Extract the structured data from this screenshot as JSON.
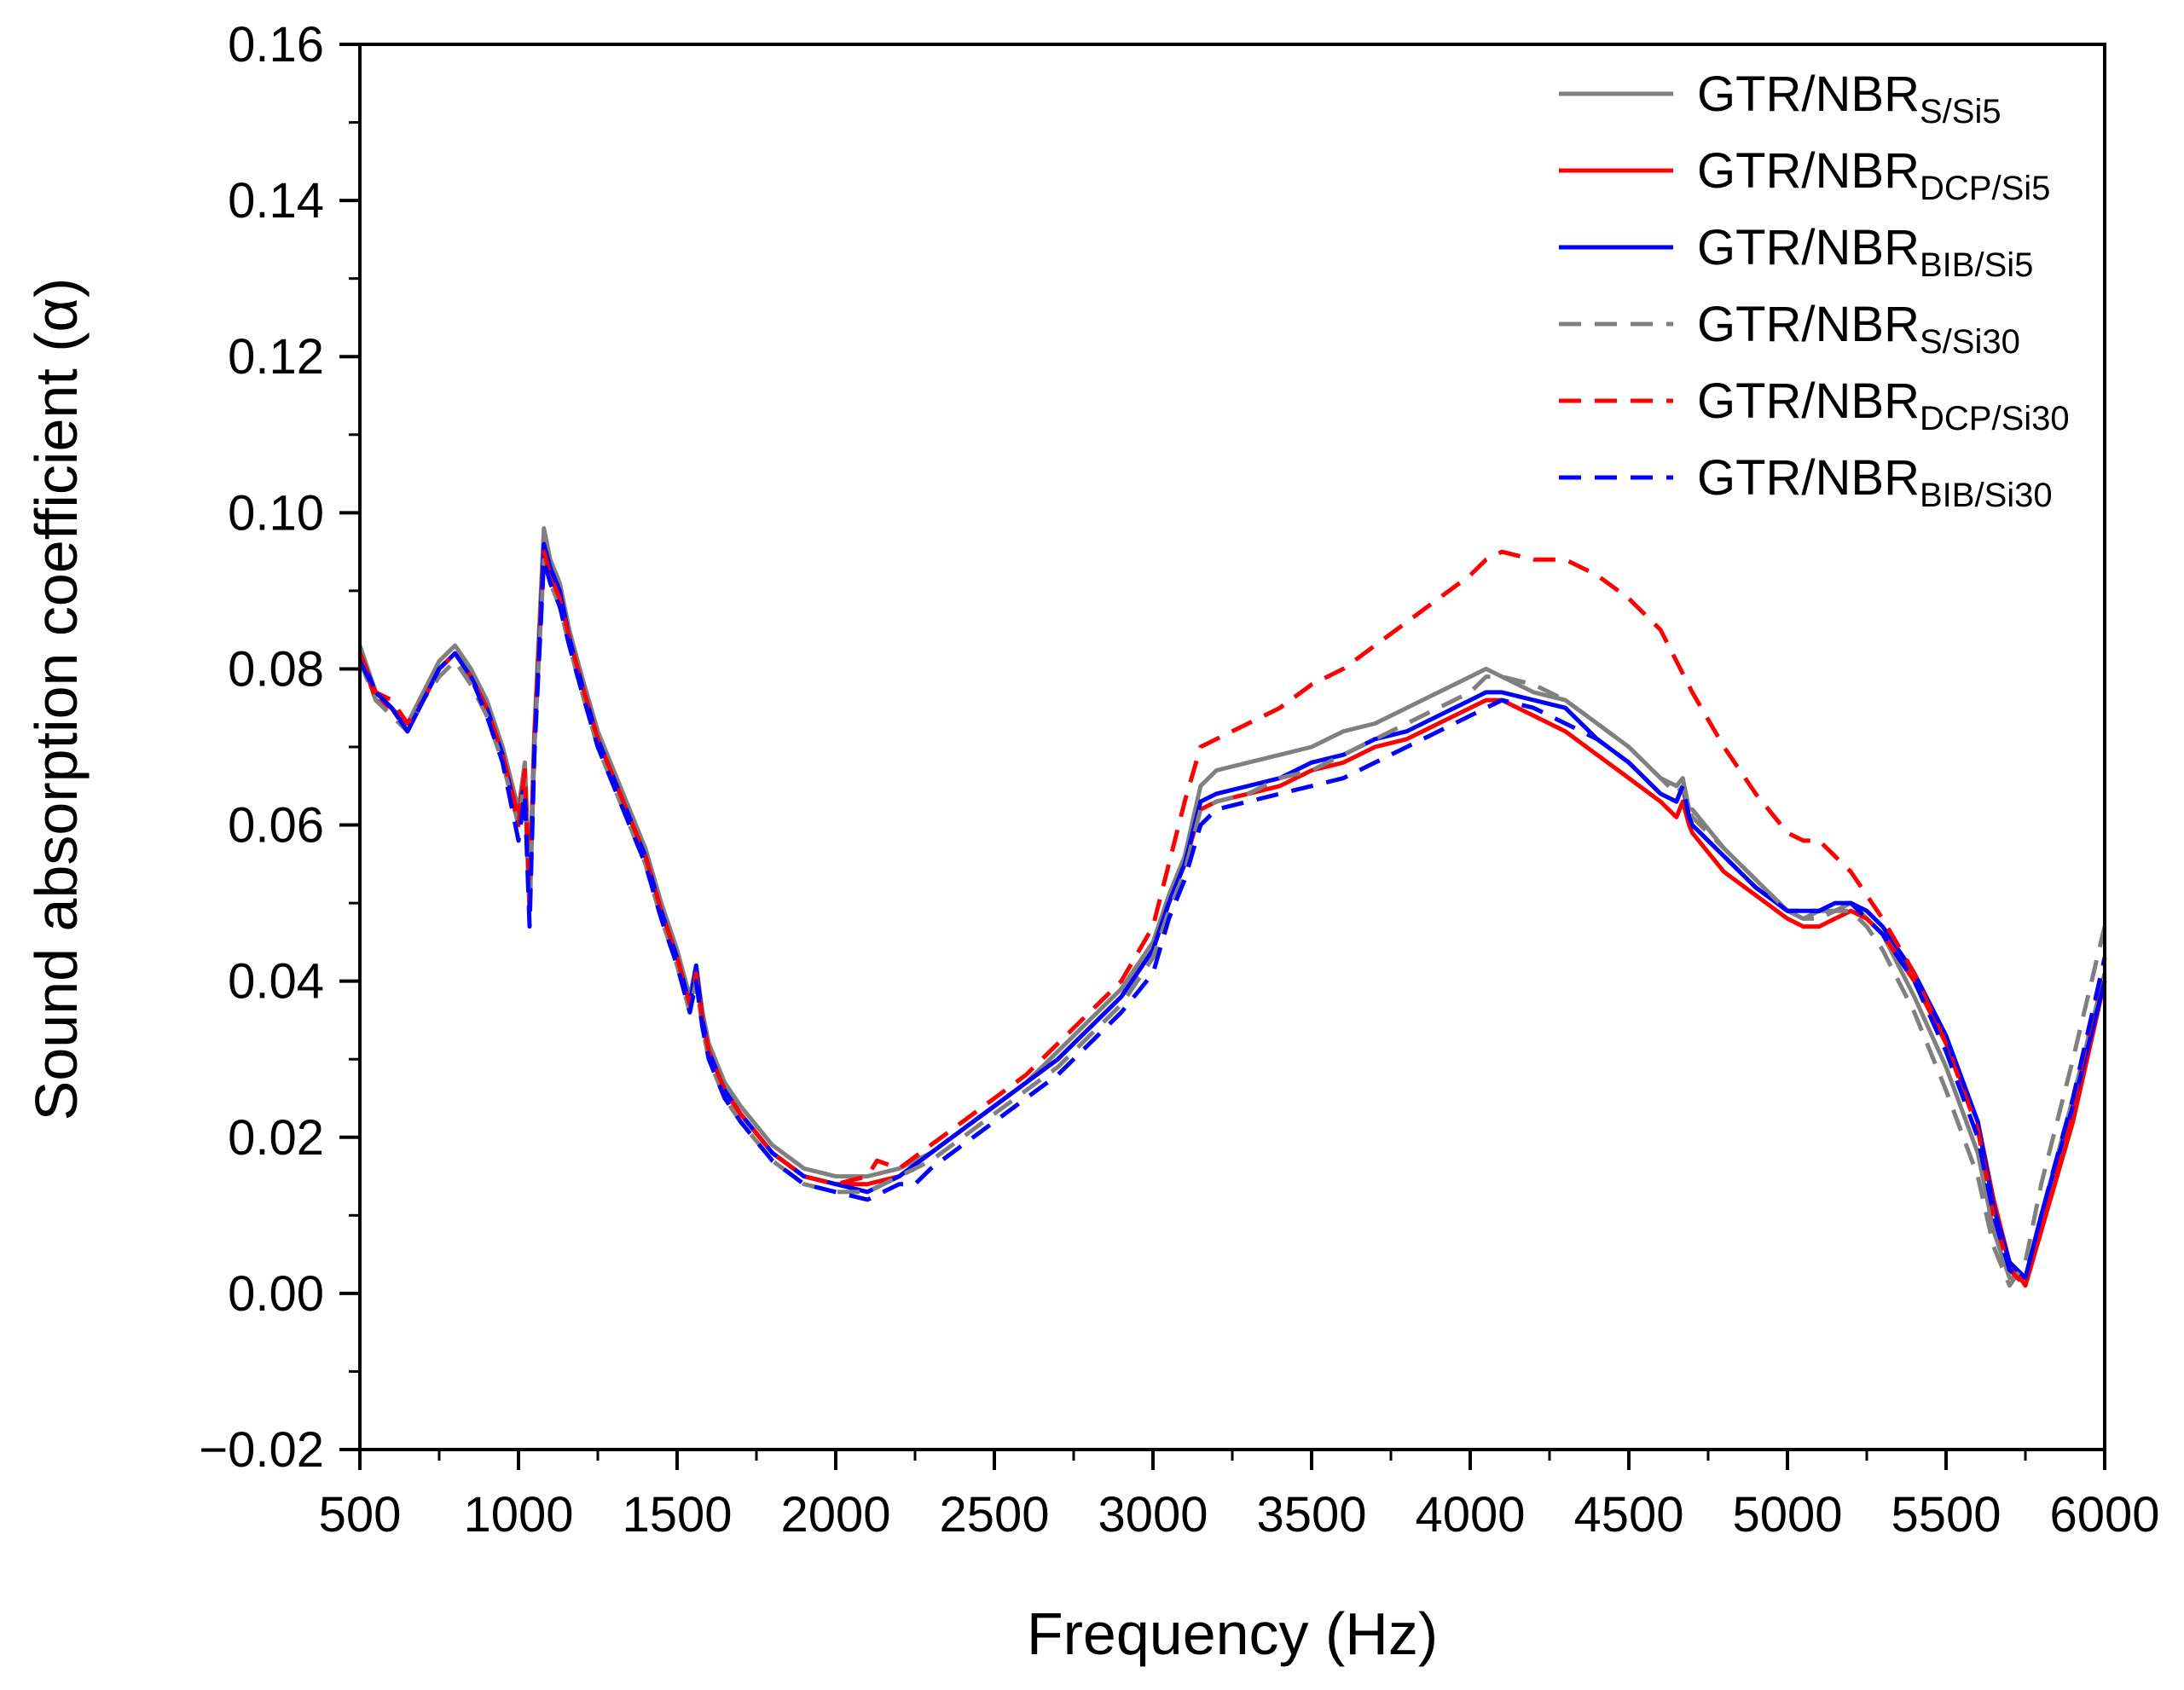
{
  "chart_data": {
    "type": "line",
    "title": "",
    "xlabel": "Frequency (Hz)",
    "ylabel": "Sound absorption coefficient (α)",
    "xlim": [
      500,
      6000
    ],
    "ylim": [
      -0.02,
      0.16
    ],
    "xticks": [
      500,
      1000,
      1500,
      2000,
      2500,
      3000,
      3500,
      4000,
      4500,
      5000,
      5500,
      6000
    ],
    "xtick_labels": [
      "500",
      "1000",
      "1500",
      "2000",
      "2500",
      "3000",
      "3500",
      "4000",
      "4500",
      "5000",
      "5500",
      "6000"
    ],
    "yticks": [
      -0.02,
      0.0,
      0.02,
      0.04,
      0.06,
      0.08,
      0.1,
      0.12,
      0.14,
      0.16
    ],
    "ytick_labels": [
      "−0.02",
      "0.00",
      "0.02",
      "0.04",
      "0.06",
      "0.08",
      "0.10",
      "0.12",
      "0.14",
      "0.16"
    ],
    "grid": false,
    "legend_position": "top-right",
    "series": [
      {
        "name": "GTR/NBR",
        "subscript": "S/Si5",
        "color": "#808080",
        "dash": "solid",
        "x": [
          500,
          550,
          600,
          650,
          700,
          750,
          800,
          850,
          900,
          950,
          1000,
          1020,
          1035,
          1050,
          1080,
          1100,
          1130,
          1160,
          1200,
          1250,
          1300,
          1350,
          1400,
          1450,
          1500,
          1540,
          1560,
          1580,
          1600,
          1650,
          1700,
          1800,
          1900,
          2000,
          2100,
          2200,
          2300,
          2400,
          2500,
          2600,
          2700,
          2800,
          2900,
          3000,
          3050,
          3100,
          3150,
          3200,
          3300,
          3400,
          3500,
          3600,
          3700,
          3800,
          3900,
          4000,
          4050,
          4100,
          4200,
          4300,
          4400,
          4500,
          4600,
          4650,
          4670,
          4690,
          4700,
          4800,
          4900,
          5000,
          5050,
          5100,
          5150,
          5200,
          5250,
          5300,
          5400,
          5500,
          5600,
          5650,
          5700,
          5750,
          5800,
          5900,
          6000
        ],
        "y": [
          0.083,
          0.077,
          0.075,
          0.073,
          0.077,
          0.081,
          0.083,
          0.08,
          0.076,
          0.07,
          0.062,
          0.068,
          0.052,
          0.072,
          0.098,
          0.094,
          0.091,
          0.085,
          0.079,
          0.072,
          0.067,
          0.062,
          0.057,
          0.05,
          0.044,
          0.038,
          0.042,
          0.036,
          0.032,
          0.027,
          0.024,
          0.019,
          0.016,
          0.015,
          0.015,
          0.016,
          0.018,
          0.021,
          0.024,
          0.027,
          0.031,
          0.035,
          0.039,
          0.045,
          0.051,
          0.056,
          0.065,
          0.067,
          0.068,
          0.069,
          0.07,
          0.072,
          0.073,
          0.075,
          0.077,
          0.079,
          0.08,
          0.079,
          0.077,
          0.076,
          0.073,
          0.07,
          0.066,
          0.065,
          0.066,
          0.062,
          0.062,
          0.057,
          0.053,
          0.049,
          0.048,
          0.049,
          0.049,
          0.05,
          0.048,
          0.046,
          0.038,
          0.029,
          0.018,
          0.008,
          0.002,
          0.002,
          0.01,
          0.025,
          0.041
        ]
      },
      {
        "name": "GTR/NBR",
        "subscript": "DCP/Si5",
        "color": "#ff0000",
        "dash": "solid",
        "x": [
          500,
          550,
          600,
          650,
          700,
          750,
          800,
          850,
          900,
          950,
          1000,
          1020,
          1035,
          1050,
          1080,
          1100,
          1130,
          1160,
          1200,
          1250,
          1300,
          1350,
          1400,
          1450,
          1500,
          1540,
          1560,
          1580,
          1600,
          1650,
          1700,
          1800,
          1900,
          2000,
          2100,
          2200,
          2300,
          2400,
          2500,
          2600,
          2700,
          2800,
          2900,
          3000,
          3050,
          3100,
          3150,
          3200,
          3300,
          3400,
          3500,
          3600,
          3700,
          3800,
          3900,
          4000,
          4050,
          4100,
          4200,
          4300,
          4400,
          4500,
          4600,
          4650,
          4670,
          4690,
          4700,
          4800,
          4900,
          5000,
          5050,
          5100,
          5150,
          5200,
          5250,
          5300,
          5400,
          5500,
          5600,
          5650,
          5700,
          5750,
          5800,
          5900,
          6000
        ],
        "y": [
          0.082,
          0.076,
          0.075,
          0.072,
          0.076,
          0.08,
          0.082,
          0.079,
          0.075,
          0.069,
          0.061,
          0.067,
          0.051,
          0.071,
          0.095,
          0.092,
          0.089,
          0.084,
          0.078,
          0.071,
          0.066,
          0.061,
          0.056,
          0.049,
          0.043,
          0.037,
          0.041,
          0.035,
          0.031,
          0.026,
          0.023,
          0.018,
          0.015,
          0.014,
          0.014,
          0.015,
          0.018,
          0.021,
          0.024,
          0.027,
          0.03,
          0.034,
          0.038,
          0.044,
          0.05,
          0.055,
          0.062,
          0.063,
          0.064,
          0.065,
          0.067,
          0.068,
          0.07,
          0.071,
          0.073,
          0.075,
          0.076,
          0.076,
          0.074,
          0.072,
          0.069,
          0.066,
          0.063,
          0.061,
          0.063,
          0.06,
          0.059,
          0.054,
          0.051,
          0.048,
          0.047,
          0.047,
          0.048,
          0.049,
          0.048,
          0.046,
          0.04,
          0.032,
          0.022,
          0.012,
          0.004,
          0.001,
          0.008,
          0.022,
          0.04
        ]
      },
      {
        "name": "GTR/NBR",
        "subscript": "BIB/Si5",
        "color": "#0000ff",
        "dash": "solid",
        "x": [
          500,
          550,
          600,
          650,
          700,
          750,
          800,
          850,
          900,
          950,
          1000,
          1020,
          1035,
          1050,
          1080,
          1100,
          1130,
          1160,
          1200,
          1250,
          1300,
          1350,
          1400,
          1450,
          1500,
          1540,
          1560,
          1580,
          1600,
          1650,
          1700,
          1800,
          1900,
          2000,
          2100,
          2200,
          2300,
          2400,
          2500,
          2600,
          2700,
          2800,
          2900,
          3000,
          3050,
          3100,
          3150,
          3200,
          3300,
          3400,
          3500,
          3600,
          3700,
          3800,
          3900,
          4000,
          4050,
          4100,
          4200,
          4300,
          4400,
          4500,
          4600,
          4650,
          4670,
          4690,
          4700,
          4800,
          4900,
          5000,
          5050,
          5100,
          5150,
          5200,
          5250,
          5300,
          5400,
          5500,
          5600,
          5650,
          5700,
          5750,
          5800,
          5900,
          6000
        ],
        "y": [
          0.082,
          0.077,
          0.075,
          0.072,
          0.076,
          0.08,
          0.082,
          0.079,
          0.075,
          0.069,
          0.06,
          0.066,
          0.049,
          0.07,
          0.096,
          0.093,
          0.09,
          0.084,
          0.078,
          0.071,
          0.066,
          0.061,
          0.056,
          0.049,
          0.043,
          0.037,
          0.042,
          0.035,
          0.031,
          0.026,
          0.023,
          0.018,
          0.015,
          0.014,
          0.013,
          0.015,
          0.018,
          0.021,
          0.024,
          0.027,
          0.03,
          0.034,
          0.038,
          0.044,
          0.05,
          0.055,
          0.063,
          0.064,
          0.065,
          0.066,
          0.068,
          0.069,
          0.071,
          0.072,
          0.074,
          0.076,
          0.077,
          0.077,
          0.076,
          0.075,
          0.071,
          0.068,
          0.064,
          0.063,
          0.065,
          0.061,
          0.06,
          0.056,
          0.052,
          0.049,
          0.049,
          0.049,
          0.05,
          0.05,
          0.049,
          0.047,
          0.041,
          0.033,
          0.022,
          0.011,
          0.004,
          0.002,
          0.01,
          0.024,
          0.04
        ]
      },
      {
        "name": "GTR/NBR",
        "subscript": "S/Si30",
        "color": "#808080",
        "dash": "dashed",
        "x": [
          500,
          550,
          600,
          650,
          700,
          750,
          800,
          850,
          900,
          950,
          1000,
          1020,
          1035,
          1050,
          1080,
          1100,
          1130,
          1160,
          1200,
          1250,
          1300,
          1350,
          1400,
          1450,
          1500,
          1540,
          1560,
          1580,
          1600,
          1650,
          1700,
          1800,
          1900,
          2000,
          2100,
          2200,
          2300,
          2400,
          2500,
          2600,
          2700,
          2800,
          2900,
          3000,
          3050,
          3100,
          3150,
          3200,
          3300,
          3400,
          3500,
          3600,
          3700,
          3800,
          3900,
          4000,
          4050,
          4100,
          4200,
          4300,
          4400,
          4500,
          4600,
          4650,
          4670,
          4690,
          4700,
          4800,
          4900,
          5000,
          5050,
          5100,
          5150,
          5200,
          5250,
          5300,
          5400,
          5500,
          5600,
          5650,
          5700,
          5750,
          5800,
          5900,
          6000
        ],
        "y": [
          0.081,
          0.076,
          0.074,
          0.072,
          0.076,
          0.079,
          0.081,
          0.078,
          0.074,
          0.068,
          0.06,
          0.066,
          0.05,
          0.07,
          0.094,
          0.091,
          0.088,
          0.083,
          0.077,
          0.07,
          0.065,
          0.06,
          0.055,
          0.048,
          0.042,
          0.036,
          0.04,
          0.034,
          0.03,
          0.025,
          0.022,
          0.017,
          0.014,
          0.013,
          0.013,
          0.015,
          0.017,
          0.02,
          0.023,
          0.026,
          0.029,
          0.033,
          0.037,
          0.043,
          0.049,
          0.054,
          0.062,
          0.063,
          0.064,
          0.066,
          0.067,
          0.069,
          0.071,
          0.073,
          0.075,
          0.077,
          0.079,
          0.079,
          0.078,
          0.076,
          0.073,
          0.07,
          0.066,
          0.064,
          0.065,
          0.062,
          0.061,
          0.057,
          0.053,
          0.049,
          0.048,
          0.048,
          0.049,
          0.049,
          0.047,
          0.044,
          0.036,
          0.026,
          0.015,
          0.006,
          0.001,
          0.004,
          0.014,
          0.03,
          0.047
        ]
      },
      {
        "name": "GTR/NBR",
        "subscript": "DCP/Si30",
        "color": "#ff0000",
        "dash": "dashed",
        "x": [
          500,
          550,
          600,
          650,
          700,
          750,
          800,
          850,
          900,
          950,
          1000,
          1020,
          1035,
          1050,
          1080,
          1100,
          1130,
          1160,
          1200,
          1250,
          1300,
          1350,
          1400,
          1450,
          1500,
          1540,
          1560,
          1580,
          1600,
          1650,
          1700,
          1800,
          1900,
          2000,
          2100,
          2130,
          2200,
          2300,
          2400,
          2500,
          2600,
          2700,
          2800,
          2900,
          3000,
          3050,
          3100,
          3150,
          3200,
          3300,
          3400,
          3500,
          3600,
          3700,
          3800,
          3900,
          4000,
          4050,
          4100,
          4200,
          4300,
          4400,
          4500,
          4600,
          4650,
          4700,
          4800,
          4900,
          5000,
          5050,
          5100,
          5150,
          5200,
          5250,
          5300,
          5400,
          5500,
          5600,
          5650,
          5700,
          5750,
          5800,
          5900,
          6000
        ],
        "y": [
          0.082,
          0.077,
          0.076,
          0.073,
          0.076,
          0.08,
          0.082,
          0.079,
          0.075,
          0.069,
          0.06,
          0.067,
          0.05,
          0.071,
          0.095,
          0.092,
          0.089,
          0.084,
          0.078,
          0.071,
          0.066,
          0.061,
          0.056,
          0.049,
          0.043,
          0.037,
          0.041,
          0.035,
          0.031,
          0.026,
          0.023,
          0.018,
          0.015,
          0.014,
          0.015,
          0.017,
          0.016,
          0.019,
          0.022,
          0.025,
          0.028,
          0.032,
          0.036,
          0.04,
          0.047,
          0.055,
          0.063,
          0.07,
          0.071,
          0.073,
          0.075,
          0.078,
          0.08,
          0.083,
          0.086,
          0.089,
          0.092,
          0.094,
          0.095,
          0.094,
          0.094,
          0.092,
          0.089,
          0.085,
          0.081,
          0.077,
          0.07,
          0.064,
          0.059,
          0.058,
          0.058,
          0.056,
          0.054,
          0.051,
          0.048,
          0.041,
          0.032,
          0.021,
          0.01,
          0.003,
          0.001,
          0.008,
          0.024,
          0.043
        ]
      },
      {
        "name": "GTR/NBR",
        "subscript": "BIB/Si30",
        "color": "#0000ff",
        "dash": "dashed",
        "x": [
          500,
          550,
          600,
          650,
          700,
          750,
          800,
          850,
          900,
          950,
          1000,
          1020,
          1035,
          1050,
          1080,
          1100,
          1130,
          1160,
          1200,
          1250,
          1300,
          1350,
          1400,
          1450,
          1500,
          1540,
          1560,
          1580,
          1600,
          1650,
          1700,
          1800,
          1900,
          2000,
          2100,
          2200,
          2250,
          2300,
          2400,
          2500,
          2600,
          2700,
          2800,
          2900,
          3000,
          3050,
          3100,
          3150,
          3200,
          3300,
          3400,
          3500,
          3600,
          3700,
          3800,
          3900,
          4000,
          4050,
          4100,
          4200,
          4300,
          4400,
          4500,
          4600,
          4650,
          4670,
          4690,
          4700,
          4800,
          4900,
          5000,
          5050,
          5100,
          5150,
          5200,
          5250,
          5300,
          5400,
          5500,
          5600,
          5650,
          5700,
          5750,
          5800,
          5900,
          6000
        ],
        "y": [
          0.081,
          0.077,
          0.075,
          0.072,
          0.076,
          0.08,
          0.082,
          0.079,
          0.074,
          0.068,
          0.058,
          0.064,
          0.047,
          0.069,
          0.094,
          0.091,
          0.088,
          0.083,
          0.077,
          0.07,
          0.065,
          0.06,
          0.055,
          0.048,
          0.042,
          0.036,
          0.04,
          0.034,
          0.03,
          0.025,
          0.022,
          0.017,
          0.014,
          0.013,
          0.012,
          0.014,
          0.014,
          0.016,
          0.019,
          0.022,
          0.025,
          0.028,
          0.032,
          0.036,
          0.041,
          0.048,
          0.053,
          0.06,
          0.062,
          0.063,
          0.064,
          0.065,
          0.066,
          0.068,
          0.07,
          0.072,
          0.074,
          0.075,
          0.076,
          0.075,
          0.073,
          0.071,
          0.068,
          0.064,
          0.063,
          0.065,
          0.061,
          0.06,
          0.056,
          0.052,
          0.049,
          0.049,
          0.049,
          0.05,
          0.05,
          0.048,
          0.046,
          0.04,
          0.031,
          0.02,
          0.01,
          0.003,
          0.002,
          0.01,
          0.025,
          0.043
        ]
      }
    ]
  }
}
